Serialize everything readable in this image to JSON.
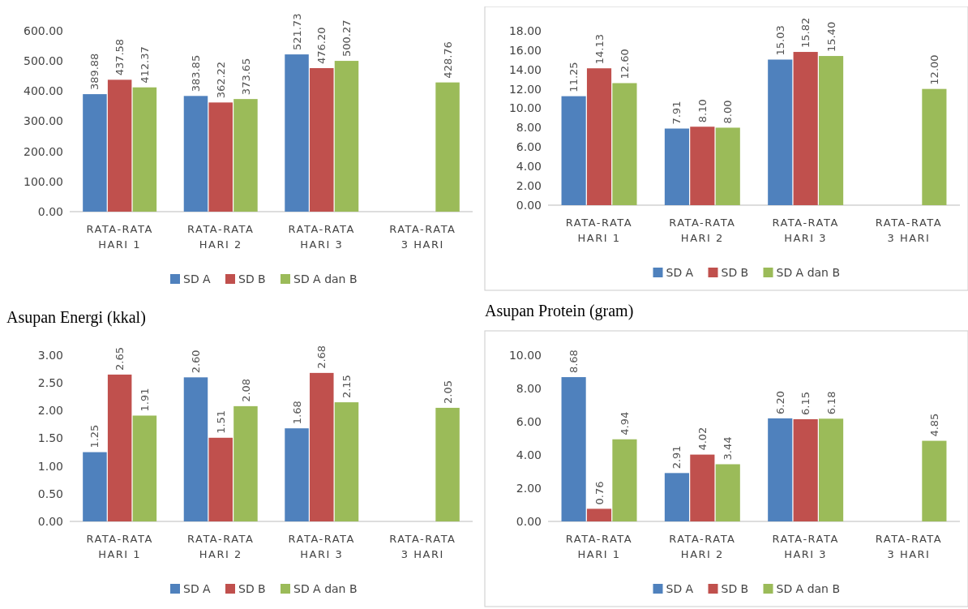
{
  "chart_data": [
    {
      "type": "bar",
      "title": "Asupan Energi (kkal)",
      "categories": [
        "RATA-RATA HARI 1",
        "RATA-RATA HARI 2",
        "RATA-RATA HARI 3",
        "RATA-RATA 3 HARI"
      ],
      "series": [
        {
          "name": "SD A",
          "color": "#4f81bd",
          "values": [
            389.88,
            383.85,
            521.73,
            null
          ],
          "value_labels": [
            "389.88",
            "383.85",
            "521.73",
            null
          ]
        },
        {
          "name": "SD B",
          "color": "#c0504d",
          "values": [
            437.58,
            362.22,
            476.2,
            null
          ],
          "value_labels": [
            "437.58",
            "362.22",
            "476.20",
            null
          ]
        },
        {
          "name": "SD A dan B",
          "color": "#9bbb59",
          "values": [
            412.37,
            373.65,
            500.27,
            428.76
          ],
          "value_labels": [
            "412.37",
            "373.65",
            "500.27",
            "428.76"
          ]
        }
      ],
      "ylim": [
        0,
        600
      ],
      "yticks": [
        {
          "value": 0,
          "label": "0.00"
        },
        {
          "value": 100,
          "label": "100.00"
        },
        {
          "value": 200,
          "label": "200.00"
        },
        {
          "value": 300,
          "label": "300.00"
        },
        {
          "value": 400,
          "label": "400.00"
        },
        {
          "value": 500,
          "label": "500.00"
        },
        {
          "value": 600,
          "label": "600.00"
        }
      ],
      "legend": "bottom"
    },
    {
      "type": "bar",
      "title": "Asupan Protein (gram)",
      "categories": [
        "RATA-RATA HARI 1",
        "RATA-RATA HARI 2",
        "RATA-RATA HARI 3",
        "RATA-RATA 3 HARI"
      ],
      "series": [
        {
          "name": "SD A",
          "color": "#4f81bd",
          "values": [
            11.25,
            7.91,
            15.03,
            null
          ],
          "value_labels": [
            "11.25",
            "7.91",
            "15.03",
            null
          ]
        },
        {
          "name": "SD B",
          "color": "#c0504d",
          "values": [
            14.13,
            8.1,
            15.82,
            null
          ],
          "value_labels": [
            "14.13",
            "8.10",
            "15.82",
            null
          ]
        },
        {
          "name": "SD A dan B",
          "color": "#9bbb59",
          "values": [
            12.6,
            8,
            15.4,
            12
          ],
          "value_labels": [
            "12.60",
            "8.00",
            "15.40",
            "12.00"
          ]
        }
      ],
      "ylim": [
        0,
        18
      ],
      "yticks": [
        {
          "value": 0,
          "label": "0.00"
        },
        {
          "value": 2,
          "label": "2.00"
        },
        {
          "value": 4,
          "label": "4.00"
        },
        {
          "value": 6,
          "label": "6.00"
        },
        {
          "value": 8,
          "label": "8.00"
        },
        {
          "value": 10,
          "label": "10.00"
        },
        {
          "value": 12,
          "label": "12.00"
        },
        {
          "value": 14,
          "label": "14.00"
        },
        {
          "value": 16,
          "label": "16.00"
        },
        {
          "value": 18,
          "label": "18.00"
        }
      ],
      "legend": "bottom"
    },
    {
      "type": "bar",
      "categories": [
        "RATA-RATA HARI 1",
        "RATA-RATA HARI 2",
        "RATA-RATA HARI 3",
        "RATA-RATA 3 HARI"
      ],
      "series": [
        {
          "name": "SD A",
          "color": "#4f81bd",
          "values": [
            1.25,
            2.6,
            1.68,
            null
          ],
          "value_labels": [
            "1.25",
            "2.60",
            "1.68",
            null
          ]
        },
        {
          "name": "SD B",
          "color": "#c0504d",
          "values": [
            2.65,
            1.51,
            2.68,
            null
          ],
          "value_labels": [
            "2.65",
            "1.51",
            "2.68",
            null
          ]
        },
        {
          "name": "SD A dan B",
          "color": "#9bbb59",
          "values": [
            1.91,
            2.08,
            2.15,
            2.05
          ],
          "value_labels": [
            "1.91",
            "2.08",
            "2.15",
            "2.05"
          ]
        }
      ],
      "ylim": [
        0,
        3
      ],
      "yticks": [
        {
          "value": 0,
          "label": "0.00"
        },
        {
          "value": 0.5,
          "label": "0.50"
        },
        {
          "value": 1,
          "label": "1.00"
        },
        {
          "value": 1.5,
          "label": "1.50"
        },
        {
          "value": 2,
          "label": "2.00"
        },
        {
          "value": 2.5,
          "label": "2.50"
        },
        {
          "value": 3,
          "label": "3.00"
        }
      ],
      "legend": "bottom"
    },
    {
      "type": "bar",
      "categories": [
        "RATA-RATA HARI 1",
        "RATA-RATA HARI 2",
        "RATA-RATA HARI 3",
        "RATA-RATA 3 HARI"
      ],
      "series": [
        {
          "name": "SD A",
          "color": "#4f81bd",
          "values": [
            8.68,
            2.91,
            6.2,
            null
          ],
          "value_labels": [
            "8.68",
            "2.91",
            "6.20",
            null
          ]
        },
        {
          "name": "SD B",
          "color": "#c0504d",
          "values": [
            0.76,
            4.02,
            6.15,
            null
          ],
          "value_labels": [
            "0.76",
            "4.02",
            "6.15",
            null
          ]
        },
        {
          "name": "SD A dan B",
          "color": "#9bbb59",
          "values": [
            4.94,
            3.44,
            6.18,
            4.85
          ],
          "value_labels": [
            "4.94",
            "3.44",
            "6.18",
            "4.85"
          ]
        }
      ],
      "ylim": [
        0,
        10
      ],
      "yticks": [
        {
          "value": 0,
          "label": "0.00"
        },
        {
          "value": 2,
          "label": "2.00"
        },
        {
          "value": 4,
          "label": "4.00"
        },
        {
          "value": 6,
          "label": "6.00"
        },
        {
          "value": 8,
          "label": "8.00"
        },
        {
          "value": 10,
          "label": "10.00"
        }
      ],
      "legend": "bottom"
    }
  ]
}
